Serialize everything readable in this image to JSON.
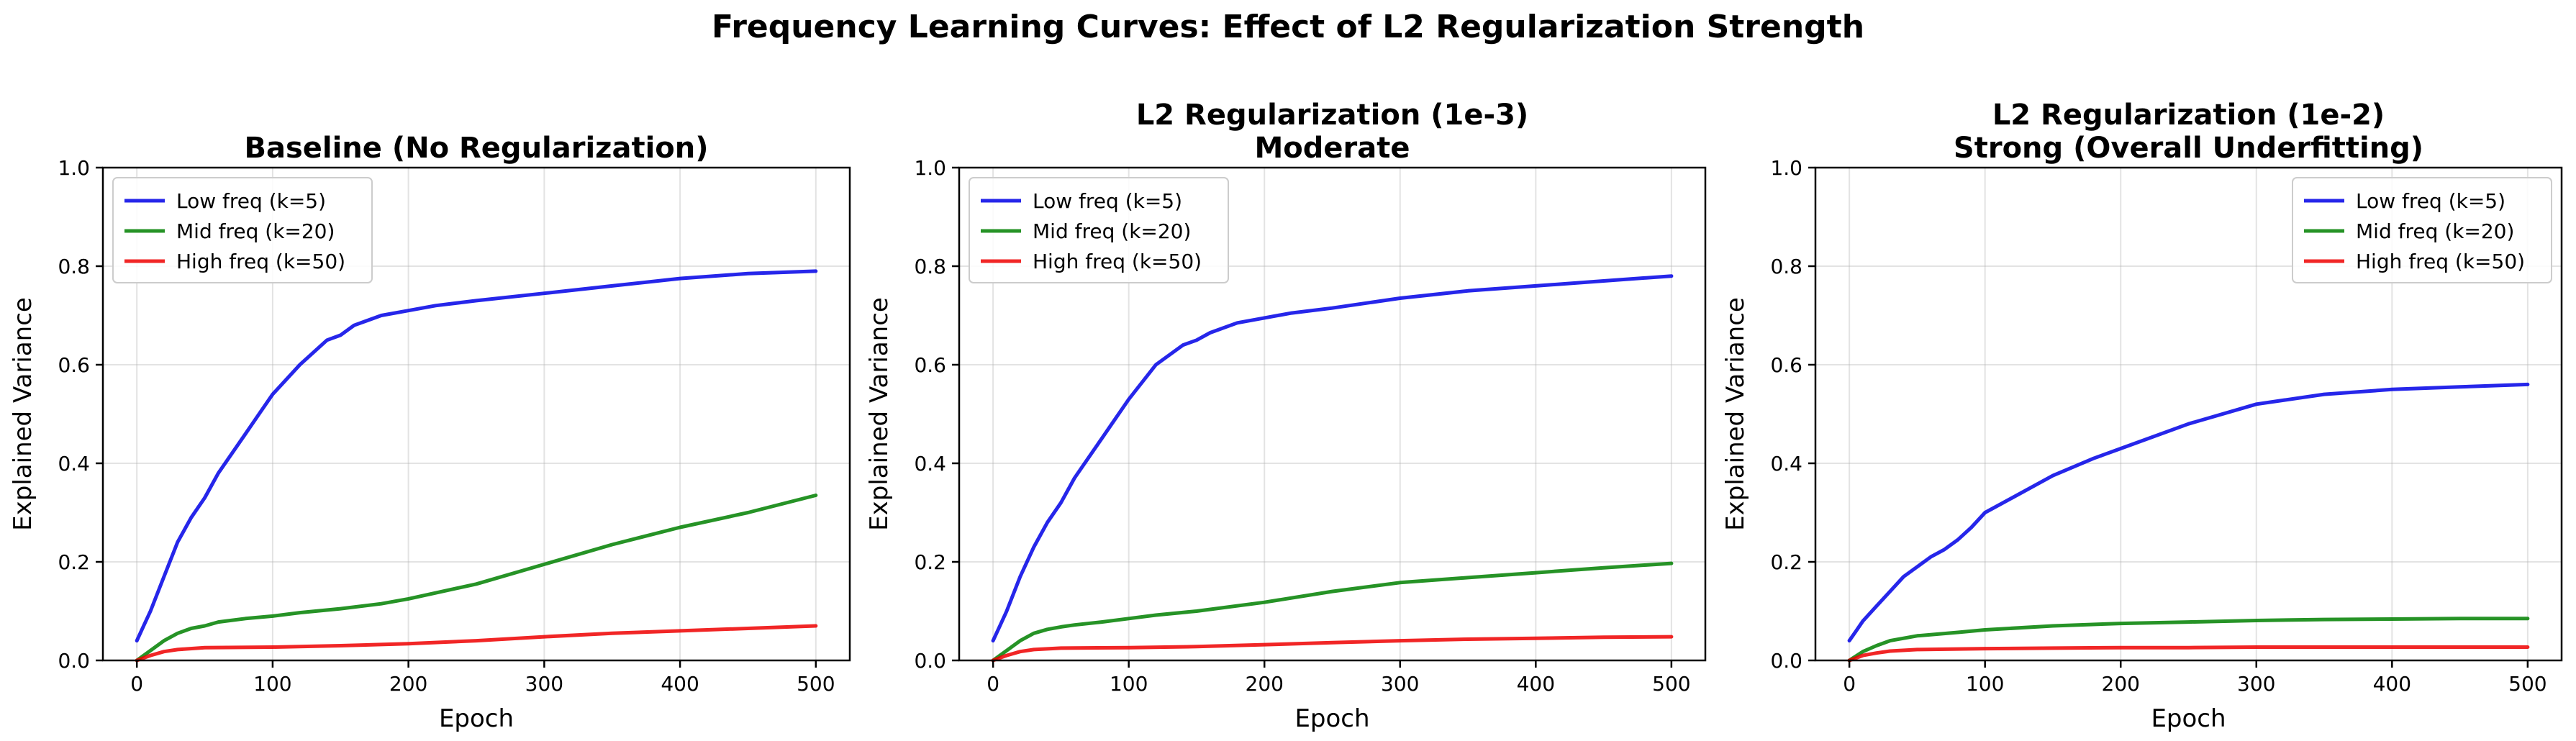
{
  "figure_title": "Frequency Learning Curves: Effect of L2 Regularization Strength",
  "colors": {
    "low": "#0000e6",
    "mid": "#008000",
    "high": "#ee0000"
  },
  "chart_data": [
    {
      "type": "line",
      "title": "Baseline (No Regularization)",
      "xlabel": "Epoch",
      "ylabel": "Explained Variance",
      "xlim": [
        -25,
        525
      ],
      "ylim": [
        0,
        1.0
      ],
      "xticks": [
        0,
        100,
        200,
        300,
        400,
        500
      ],
      "yticks": [
        0.0,
        0.2,
        0.4,
        0.6,
        0.8,
        1.0
      ],
      "grid": true,
      "legend_position": "upper-left",
      "series": [
        {
          "name": "Low freq (k=5)",
          "color_key": "low",
          "x": [
            0,
            5,
            10,
            20,
            30,
            40,
            50,
            60,
            70,
            80,
            90,
            100,
            120,
            140,
            150,
            160,
            180,
            200,
            220,
            250,
            300,
            350,
            400,
            450,
            500
          ],
          "y": [
            0.04,
            0.07,
            0.1,
            0.17,
            0.24,
            0.29,
            0.33,
            0.38,
            0.42,
            0.46,
            0.5,
            0.54,
            0.6,
            0.65,
            0.66,
            0.68,
            0.7,
            0.71,
            0.72,
            0.73,
            0.745,
            0.76,
            0.775,
            0.785,
            0.79
          ]
        },
        {
          "name": "Mid freq (k=20)",
          "color_key": "mid",
          "x": [
            0,
            10,
            20,
            30,
            40,
            50,
            60,
            80,
            100,
            120,
            150,
            180,
            200,
            250,
            300,
            350,
            400,
            450,
            500
          ],
          "y": [
            0.0,
            0.02,
            0.04,
            0.055,
            0.065,
            0.07,
            0.078,
            0.085,
            0.09,
            0.097,
            0.105,
            0.115,
            0.125,
            0.155,
            0.195,
            0.235,
            0.27,
            0.3,
            0.335
          ]
        },
        {
          "name": "High freq (k=50)",
          "color_key": "high",
          "x": [
            0,
            10,
            20,
            30,
            50,
            100,
            150,
            200,
            250,
            300,
            350,
            400,
            450,
            500
          ],
          "y": [
            0.0,
            0.01,
            0.018,
            0.022,
            0.026,
            0.027,
            0.03,
            0.034,
            0.04,
            0.048,
            0.055,
            0.06,
            0.065,
            0.07
          ]
        }
      ]
    },
    {
      "type": "line",
      "title": "L2 Regularization (1e-3)\nModerate",
      "xlabel": "Epoch",
      "ylabel": "Explained Variance",
      "xlim": [
        -25,
        525
      ],
      "ylim": [
        0,
        1.0
      ],
      "xticks": [
        0,
        100,
        200,
        300,
        400,
        500
      ],
      "yticks": [
        0.0,
        0.2,
        0.4,
        0.6,
        0.8,
        1.0
      ],
      "grid": true,
      "legend_position": "upper-left",
      "series": [
        {
          "name": "Low freq (k=5)",
          "color_key": "low",
          "x": [
            0,
            5,
            10,
            20,
            30,
            40,
            50,
            60,
            70,
            80,
            90,
            100,
            120,
            140,
            150,
            160,
            180,
            200,
            220,
            250,
            300,
            350,
            400,
            450,
            500
          ],
          "y": [
            0.04,
            0.07,
            0.1,
            0.17,
            0.23,
            0.28,
            0.32,
            0.37,
            0.41,
            0.45,
            0.49,
            0.53,
            0.6,
            0.64,
            0.65,
            0.665,
            0.685,
            0.695,
            0.705,
            0.715,
            0.735,
            0.75,
            0.76,
            0.77,
            0.78
          ]
        },
        {
          "name": "Mid freq (k=20)",
          "color_key": "mid",
          "x": [
            0,
            10,
            20,
            30,
            40,
            50,
            60,
            80,
            100,
            120,
            150,
            200,
            250,
            300,
            350,
            400,
            450,
            500
          ],
          "y": [
            0.0,
            0.02,
            0.04,
            0.055,
            0.063,
            0.068,
            0.072,
            0.078,
            0.085,
            0.092,
            0.1,
            0.118,
            0.14,
            0.158,
            0.168,
            0.178,
            0.188,
            0.197
          ]
        },
        {
          "name": "High freq (k=50)",
          "color_key": "high",
          "x": [
            0,
            10,
            20,
            30,
            50,
            100,
            150,
            200,
            250,
            300,
            350,
            400,
            450,
            500
          ],
          "y": [
            0.0,
            0.01,
            0.018,
            0.022,
            0.025,
            0.026,
            0.028,
            0.032,
            0.036,
            0.04,
            0.043,
            0.045,
            0.047,
            0.048
          ]
        }
      ]
    },
    {
      "type": "line",
      "title": "L2 Regularization (1e-2)\nStrong (Overall Underfitting)",
      "xlabel": "Epoch",
      "ylabel": "Explained Variance",
      "xlim": [
        -25,
        525
      ],
      "ylim": [
        0,
        1.0
      ],
      "xticks": [
        0,
        100,
        200,
        300,
        400,
        500
      ],
      "yticks": [
        0.0,
        0.2,
        0.4,
        0.6,
        0.8,
        1.0
      ],
      "grid": true,
      "legend_position": "upper-right",
      "series": [
        {
          "name": "Low freq (k=5)",
          "color_key": "low",
          "x": [
            0,
            5,
            10,
            20,
            30,
            40,
            50,
            60,
            70,
            80,
            90,
            100,
            120,
            150,
            180,
            200,
            250,
            300,
            350,
            400,
            450,
            500
          ],
          "y": [
            0.04,
            0.06,
            0.08,
            0.11,
            0.14,
            0.17,
            0.19,
            0.21,
            0.225,
            0.245,
            0.27,
            0.3,
            0.33,
            0.375,
            0.41,
            0.43,
            0.48,
            0.52,
            0.54,
            0.55,
            0.555,
            0.56
          ]
        },
        {
          "name": "Mid freq (k=20)",
          "color_key": "mid",
          "x": [
            0,
            10,
            20,
            30,
            50,
            80,
            100,
            150,
            200,
            250,
            300,
            350,
            400,
            450,
            500
          ],
          "y": [
            0.0,
            0.018,
            0.03,
            0.04,
            0.05,
            0.057,
            0.062,
            0.07,
            0.075,
            0.078,
            0.081,
            0.083,
            0.084,
            0.085,
            0.085
          ]
        },
        {
          "name": "High freq (k=50)",
          "color_key": "high",
          "x": [
            0,
            10,
            20,
            30,
            50,
            100,
            150,
            200,
            250,
            300,
            350,
            400,
            450,
            500
          ],
          "y": [
            0.0,
            0.01,
            0.015,
            0.019,
            0.022,
            0.024,
            0.025,
            0.026,
            0.026,
            0.027,
            0.027,
            0.027,
            0.027,
            0.027
          ]
        }
      ]
    }
  ]
}
